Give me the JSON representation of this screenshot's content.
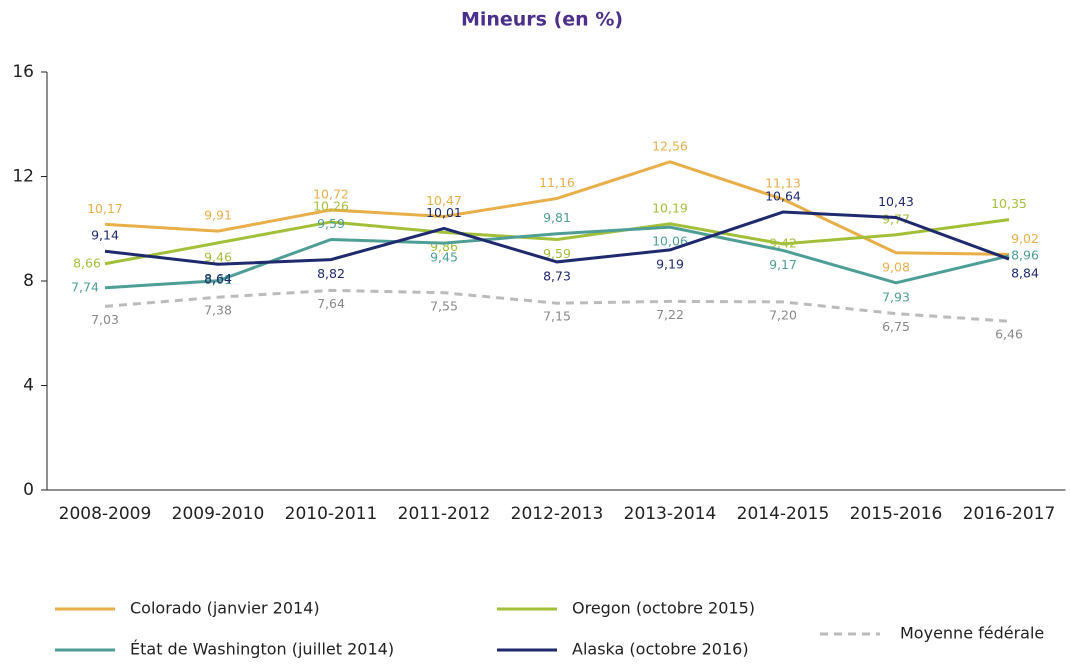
{
  "chart_data": {
    "type": "line",
    "title": "Mineurs (en %)",
    "categories": [
      "2008-2009",
      "2009-2010",
      "2010-2011",
      "2011-2012",
      "2012-2013",
      "2013-2014",
      "2014-2015",
      "2015-2016",
      "2016-2017"
    ],
    "ylim": [
      0,
      16
    ],
    "yticks": [
      0,
      4,
      8,
      12,
      16
    ],
    "series": [
      {
        "name": "Colorado (janvier 2014)",
        "color": "#e8ae4a",
        "values": [
          10.17,
          9.91,
          10.72,
          10.47,
          11.16,
          12.56,
          11.13,
          9.08,
          9.02
        ],
        "value_labels": [
          "10,17",
          "9,91",
          "10,72",
          "10,47",
          "11,16",
          "12,56",
          "11,13",
          "9,08",
          "9,02"
        ]
      },
      {
        "name": "Oregon (octobre 2015)",
        "color": "#a2bf3a",
        "values": [
          8.66,
          9.46,
          10.26,
          9.86,
          9.59,
          10.19,
          9.42,
          9.77,
          10.35
        ],
        "value_labels": [
          "8,66",
          "9,46",
          "10,26",
          "9,86",
          "9,59",
          "10,19",
          "9,42",
          "9,77",
          "10,35"
        ]
      },
      {
        "name": "État de Washington (juillet 2014)",
        "color": "#4e9e96",
        "values": [
          7.74,
          8.01,
          9.59,
          9.45,
          9.81,
          10.06,
          9.17,
          7.93,
          8.96
        ],
        "value_labels": [
          "7,74",
          "8,01",
          "9,59",
          "9,45",
          "9,81",
          "10,06",
          "9,17",
          "7,93",
          "8,96"
        ]
      },
      {
        "name": "Alaska (octobre 2016)",
        "color": "#1f2a6e",
        "values": [
          9.14,
          8.64,
          8.82,
          10.01,
          8.73,
          9.19,
          10.64,
          10.43,
          8.84
        ],
        "value_labels": [
          "9,14",
          "8,64",
          "8,82",
          "10,01",
          "8,73",
          "9,19",
          "10,64",
          "10,43",
          "8,84"
        ]
      },
      {
        "name": "Moyenne fédérale",
        "color": "#bbbbbb",
        "dashed": true,
        "values": [
          7.03,
          7.38,
          7.64,
          7.55,
          7.15,
          7.22,
          7.2,
          6.75,
          6.46
        ],
        "value_labels": [
          "7,03",
          "7,38",
          "7,64",
          "7,55",
          "7,15",
          "7,22",
          "7,20",
          "6,75",
          "6,46"
        ]
      }
    ]
  }
}
